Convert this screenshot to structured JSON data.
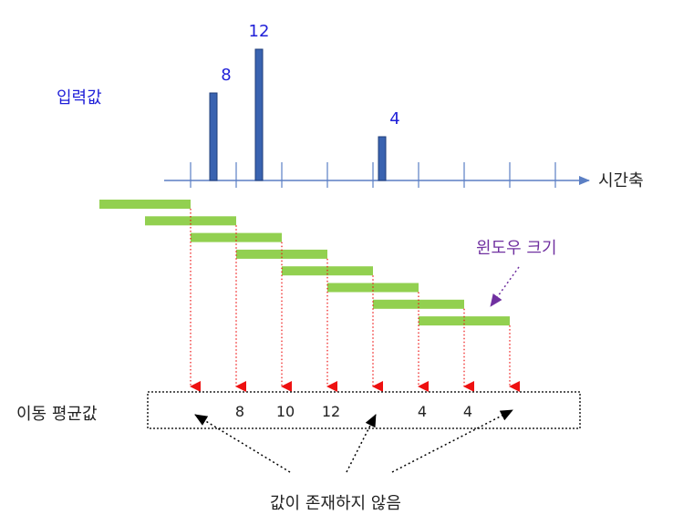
{
  "labels": {
    "input_label": "입력값",
    "time_axis_label": "시간축",
    "window_size_label": "윈도우 크기",
    "moving_average_label": "이동 평균값",
    "no_value_label": "값이 존재하지 않음"
  },
  "input_values": [
    {
      "tick": 0.5,
      "value": 8,
      "label": "8"
    },
    {
      "tick": 1.5,
      "value": 12,
      "label": "12"
    },
    {
      "tick": 4.2,
      "value": 4,
      "label": "4"
    }
  ],
  "moving_average": [
    {
      "tick": 0,
      "label": ""
    },
    {
      "tick": 1,
      "label": "8"
    },
    {
      "tick": 2,
      "label": "10"
    },
    {
      "tick": 3,
      "label": "12"
    },
    {
      "tick": 4,
      "label": ""
    },
    {
      "tick": 5,
      "label": "4"
    },
    {
      "tick": 6,
      "label": "4"
    },
    {
      "tick": 7,
      "label": ""
    }
  ],
  "window_count": 8,
  "colors": {
    "bar_fill": "#3a63b0",
    "bar_stroke": "#1f3d7a",
    "axis": "#5b7fc4",
    "value_text": "#1f1fd8",
    "window_bar": "#92d050",
    "arrow_red": "#ee1111",
    "window_label": "#7030a0",
    "text": "#222222"
  }
}
